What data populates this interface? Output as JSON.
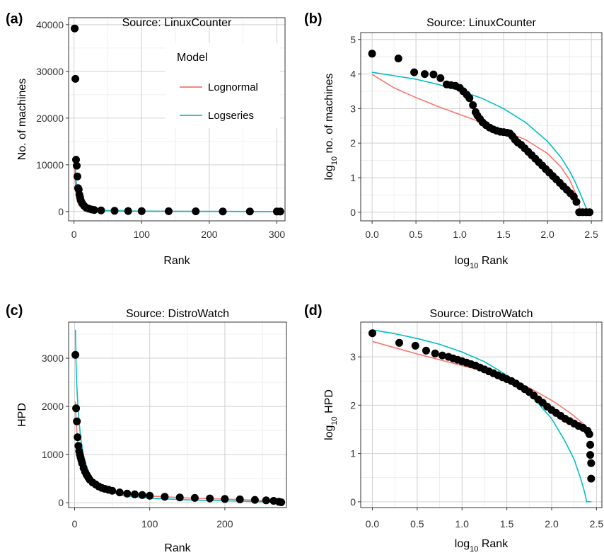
{
  "chart_data": [
    {
      "id": "a",
      "panel_label": "(a)",
      "type": "scatter",
      "title": "Source: LinuxCounter",
      "xlabel": "Rank",
      "ylabel": "No. of machines",
      "xlim": [
        -8,
        312
      ],
      "ylim": [
        -2000,
        41500
      ],
      "xticks": [
        0,
        100,
        200,
        300
      ],
      "xtick_labels": [
        "0",
        "100",
        "200",
        "300"
      ],
      "yticks": [
        0,
        10000,
        20000,
        30000,
        40000
      ],
      "ytick_labels": [
        "0",
        "10000",
        "20000",
        "30000",
        "40000"
      ],
      "grid": true,
      "legend": {
        "title": "Model",
        "placement": "top-right",
        "entries": [
          {
            "name": "Lognormal",
            "color": "#F8766D"
          },
          {
            "name": "Logseries",
            "color": "#00BFC4"
          }
        ]
      },
      "points": [
        [
          1,
          39200
        ],
        [
          2,
          28400
        ],
        [
          3,
          11100
        ],
        [
          4,
          9800
        ],
        [
          5,
          7500
        ],
        [
          6,
          5000
        ],
        [
          7,
          4700
        ],
        [
          8,
          3600
        ],
        [
          9,
          3000
        ],
        [
          10,
          2400
        ],
        [
          12,
          1800
        ],
        [
          15,
          1200
        ],
        [
          18,
          800
        ],
        [
          22,
          600
        ],
        [
          26,
          420
        ],
        [
          30,
          330
        ],
        [
          40,
          250
        ],
        [
          60,
          150
        ],
        [
          80,
          110
        ],
        [
          100,
          90
        ],
        [
          140,
          60
        ],
        [
          180,
          40
        ],
        [
          220,
          20
        ],
        [
          260,
          10
        ],
        [
          300,
          1
        ],
        [
          305,
          1
        ]
      ],
      "series": [
        {
          "name": "Lognormal",
          "color": "#F8766D",
          "points": [
            [
              1,
              9800
            ],
            [
              2,
              5800
            ],
            [
              3,
              3900
            ],
            [
              5,
              2200
            ],
            [
              8,
              1200
            ],
            [
              12,
              700
            ],
            [
              20,
              350
            ],
            [
              40,
              160
            ],
            [
              80,
              70
            ],
            [
              150,
              30
            ],
            [
              220,
              12
            ],
            [
              280,
              4
            ],
            [
              300,
              2
            ]
          ]
        },
        {
          "name": "Logseries",
          "color": "#00BFC4",
          "points": [
            [
              1,
              11100
            ],
            [
              2,
              8900
            ],
            [
              3,
              6600
            ],
            [
              5,
              4400
            ],
            [
              8,
              2700
            ],
            [
              12,
              1650
            ],
            [
              20,
              800
            ],
            [
              40,
              250
            ],
            [
              80,
              90
            ],
            [
              150,
              40
            ],
            [
              220,
              18
            ],
            [
              280,
              6
            ],
            [
              300,
              3
            ]
          ]
        }
      ]
    },
    {
      "id": "b",
      "panel_label": "(b)",
      "type": "scatter",
      "title": "Source: LinuxCounter",
      "xlabel": "Rank",
      "xlabel_prefix": "log",
      "xlabel_sub": "10",
      "ylabel": "no. of machines",
      "ylabel_prefix": "log",
      "ylabel_sub": "10",
      "xlim": [
        -0.13,
        2.62
      ],
      "ylim": [
        -0.25,
        5.2
      ],
      "xticks": [
        0,
        0.5,
        1.0,
        1.5,
        2.0,
        2.5
      ],
      "xtick_labels": [
        "0.0",
        "0.5",
        "1.0",
        "1.5",
        "2.0",
        "2.5"
      ],
      "yticks": [
        0,
        1,
        2,
        3,
        4,
        5
      ],
      "ytick_labels": [
        "0",
        "1",
        "2",
        "3",
        "4",
        "5"
      ],
      "grid": true,
      "points": [
        [
          0.0,
          4.59
        ],
        [
          0.3,
          4.45
        ],
        [
          0.48,
          4.05
        ],
        [
          0.6,
          4.0
        ],
        [
          0.7,
          3.99
        ],
        [
          0.78,
          3.88
        ],
        [
          0.85,
          3.7
        ],
        [
          0.9,
          3.68
        ],
        [
          0.95,
          3.66
        ],
        [
          1.0,
          3.6
        ],
        [
          1.04,
          3.5
        ],
        [
          1.08,
          3.4
        ],
        [
          1.11,
          3.3
        ],
        [
          1.15,
          3.1
        ],
        [
          1.18,
          2.9
        ],
        [
          1.2,
          2.8
        ],
        [
          1.23,
          2.7
        ],
        [
          1.26,
          2.6
        ],
        [
          1.3,
          2.52
        ],
        [
          1.34,
          2.45
        ],
        [
          1.38,
          2.4
        ],
        [
          1.42,
          2.36
        ],
        [
          1.46,
          2.33
        ],
        [
          1.5,
          2.32
        ],
        [
          1.54,
          2.3
        ],
        [
          1.57,
          2.28
        ],
        [
          1.6,
          2.2
        ],
        [
          1.63,
          2.1
        ],
        [
          1.66,
          2.02
        ],
        [
          1.7,
          1.95
        ],
        [
          1.74,
          1.85
        ],
        [
          1.78,
          1.75
        ],
        [
          1.82,
          1.65
        ],
        [
          1.86,
          1.55
        ],
        [
          1.9,
          1.45
        ],
        [
          1.94,
          1.35
        ],
        [
          1.98,
          1.25
        ],
        [
          2.02,
          1.15
        ],
        [
          2.06,
          1.05
        ],
        [
          2.1,
          0.95
        ],
        [
          2.14,
          0.85
        ],
        [
          2.18,
          0.75
        ],
        [
          2.22,
          0.65
        ],
        [
          2.26,
          0.55
        ],
        [
          2.3,
          0.45
        ],
        [
          2.33,
          0.3
        ],
        [
          2.36,
          0.0
        ],
        [
          2.4,
          0.0
        ],
        [
          2.44,
          0.0
        ],
        [
          2.48,
          0.0
        ]
      ],
      "series": [
        {
          "name": "Lognormal",
          "color": "#F8766D",
          "points": [
            [
              0,
              3.99
            ],
            [
              0.25,
              3.6
            ],
            [
              0.5,
              3.32
            ],
            [
              0.75,
              3.06
            ],
            [
              1.0,
              2.83
            ],
            [
              1.25,
              2.6
            ],
            [
              1.5,
              2.36
            ],
            [
              1.75,
              2.1
            ],
            [
              2.0,
              1.7
            ],
            [
              2.15,
              1.32
            ],
            [
              2.25,
              0.95
            ],
            [
              2.32,
              0.55
            ],
            [
              2.36,
              0.22
            ],
            [
              2.38,
              0.0
            ]
          ]
        },
        {
          "name": "Logseries",
          "color": "#00BFC4",
          "points": [
            [
              0,
              4.05
            ],
            [
              0.25,
              3.95
            ],
            [
              0.5,
              3.85
            ],
            [
              0.75,
              3.7
            ],
            [
              1.0,
              3.52
            ],
            [
              1.25,
              3.3
            ],
            [
              1.5,
              3.0
            ],
            [
              1.75,
              2.6
            ],
            [
              2.0,
              2.05
            ],
            [
              2.15,
              1.6
            ],
            [
              2.25,
              1.2
            ],
            [
              2.32,
              0.85
            ],
            [
              2.38,
              0.5
            ],
            [
              2.42,
              0.25
            ],
            [
              2.46,
              0.0
            ]
          ]
        }
      ]
    },
    {
      "id": "c",
      "panel_label": "(c)",
      "type": "scatter",
      "title": "Source: DistroWatch",
      "xlabel": "Rank",
      "ylabel": "HPD",
      "xlim": [
        -8,
        282
      ],
      "ylim": [
        -100,
        3750
      ],
      "xticks": [
        0,
        100,
        200
      ],
      "xtick_labels": [
        "0",
        "100",
        "200"
      ],
      "yticks": [
        0,
        1000,
        2000,
        3000
      ],
      "ytick_labels": [
        "0",
        "1000",
        "2000",
        "3000"
      ],
      "grid": true,
      "points": [
        [
          1,
          3070
        ],
        [
          2,
          1960
        ],
        [
          3,
          1690
        ],
        [
          4,
          1360
        ],
        [
          5,
          1180
        ],
        [
          6,
          1070
        ],
        [
          7,
          1000
        ],
        [
          8,
          940
        ],
        [
          9,
          880
        ],
        [
          10,
          820
        ],
        [
          12,
          720
        ],
        [
          14,
          640
        ],
        [
          16,
          580
        ],
        [
          18,
          530
        ],
        [
          20,
          480
        ],
        [
          24,
          420
        ],
        [
          28,
          380
        ],
        [
          32,
          340
        ],
        [
          36,
          310
        ],
        [
          40,
          290
        ],
        [
          45,
          270
        ],
        [
          50,
          250
        ],
        [
          60,
          215
        ],
        [
          70,
          190
        ],
        [
          80,
          175
        ],
        [
          90,
          160
        ],
        [
          100,
          145
        ],
        [
          120,
          125
        ],
        [
          140,
          110
        ],
        [
          160,
          100
        ],
        [
          180,
          90
        ],
        [
          200,
          80
        ],
        [
          220,
          70
        ],
        [
          240,
          60
        ],
        [
          255,
          50
        ],
        [
          265,
          40
        ],
        [
          272,
          20
        ],
        [
          275,
          10
        ]
      ],
      "series": [
        {
          "name": "Lognormal",
          "color": "#F8766D",
          "points": [
            [
              1,
              2100
            ],
            [
              2,
              1700
            ],
            [
              3,
              1450
            ],
            [
              5,
              1100
            ],
            [
              8,
              850
            ],
            [
              12,
              630
            ],
            [
              20,
              430
            ],
            [
              35,
              290
            ],
            [
              60,
              200
            ],
            [
              100,
              140
            ],
            [
              150,
              100
            ],
            [
              200,
              75
            ],
            [
              250,
              50
            ],
            [
              275,
              30
            ]
          ]
        },
        {
          "name": "Logseries",
          "color": "#00BFC4",
          "points": [
            [
              1,
              3590
            ],
            [
              2,
              2860
            ],
            [
              3,
              2400
            ],
            [
              5,
              1850
            ],
            [
              8,
              1350
            ],
            [
              12,
              950
            ],
            [
              20,
              560
            ],
            [
              35,
              300
            ],
            [
              60,
              160
            ],
            [
              100,
              95
            ],
            [
              150,
              60
            ],
            [
              200,
              40
            ],
            [
              250,
              22
            ],
            [
              275,
              8
            ]
          ]
        }
      ]
    },
    {
      "id": "d",
      "panel_label": "(d)",
      "type": "scatter",
      "title": "Source: DistroWatch",
      "xlabel": "Rank",
      "xlabel_prefix": "log",
      "xlabel_sub": "10",
      "ylabel": "HPD",
      "ylabel_prefix": "log",
      "ylabel_sub": "10",
      "xlim": [
        -0.13,
        2.56
      ],
      "ylim": [
        -0.12,
        3.72
      ],
      "xticks": [
        0,
        0.5,
        1.0,
        1.5,
        2.0,
        2.5
      ],
      "xtick_labels": [
        "0.0",
        "0.5",
        "1.0",
        "1.5",
        "2.0",
        "2.5"
      ],
      "yticks": [
        0,
        1,
        2,
        3
      ],
      "ytick_labels": [
        "0",
        "1",
        "2",
        "3"
      ],
      "grid": true,
      "points": [
        [
          0.0,
          3.49
        ],
        [
          0.3,
          3.29
        ],
        [
          0.48,
          3.23
        ],
        [
          0.6,
          3.13
        ],
        [
          0.7,
          3.07
        ],
        [
          0.78,
          3.03
        ],
        [
          0.85,
          3.0
        ],
        [
          0.9,
          2.97
        ],
        [
          0.95,
          2.94
        ],
        [
          1.0,
          2.91
        ],
        [
          1.05,
          2.88
        ],
        [
          1.1,
          2.85
        ],
        [
          1.15,
          2.82
        ],
        [
          1.2,
          2.78
        ],
        [
          1.25,
          2.74
        ],
        [
          1.3,
          2.7
        ],
        [
          1.35,
          2.66
        ],
        [
          1.4,
          2.62
        ],
        [
          1.45,
          2.58
        ],
        [
          1.5,
          2.54
        ],
        [
          1.55,
          2.5
        ],
        [
          1.6,
          2.45
        ],
        [
          1.65,
          2.39
        ],
        [
          1.7,
          2.33
        ],
        [
          1.75,
          2.27
        ],
        [
          1.8,
          2.2
        ],
        [
          1.85,
          2.12
        ],
        [
          1.9,
          2.05
        ],
        [
          1.95,
          1.97
        ],
        [
          2.0,
          1.9
        ],
        [
          2.05,
          1.84
        ],
        [
          2.1,
          1.78
        ],
        [
          2.15,
          1.72
        ],
        [
          2.2,
          1.67
        ],
        [
          2.25,
          1.62
        ],
        [
          2.3,
          1.57
        ],
        [
          2.35,
          1.53
        ],
        [
          2.4,
          1.47
        ],
        [
          2.42,
          1.4
        ],
        [
          2.43,
          1.18
        ],
        [
          2.43,
          0.97
        ],
        [
          2.44,
          0.8
        ],
        [
          2.44,
          0.48
        ]
      ],
      "series": [
        {
          "name": "Lognormal",
          "color": "#F8766D",
          "points": [
            [
              0,
              3.32
            ],
            [
              0.25,
              3.19
            ],
            [
              0.5,
              3.06
            ],
            [
              0.75,
              2.94
            ],
            [
              1.0,
              2.82
            ],
            [
              1.25,
              2.7
            ],
            [
              1.5,
              2.55
            ],
            [
              1.75,
              2.36
            ],
            [
              2.0,
              2.1
            ],
            [
              2.2,
              1.85
            ],
            [
              2.35,
              1.62
            ],
            [
              2.44,
              1.43
            ]
          ]
        },
        {
          "name": "Logseries",
          "color": "#00BFC4",
          "points": [
            [
              0,
              3.56
            ],
            [
              0.25,
              3.48
            ],
            [
              0.5,
              3.38
            ],
            [
              0.75,
              3.26
            ],
            [
              1.0,
              3.1
            ],
            [
              1.25,
              2.9
            ],
            [
              1.5,
              2.62
            ],
            [
              1.75,
              2.25
            ],
            [
              2.0,
              1.72
            ],
            [
              2.15,
              1.25
            ],
            [
              2.25,
              0.88
            ],
            [
              2.32,
              0.5
            ],
            [
              2.37,
              0.18
            ],
            [
              2.39,
              0.0
            ],
            [
              2.44,
              0.0
            ]
          ]
        }
      ]
    }
  ]
}
